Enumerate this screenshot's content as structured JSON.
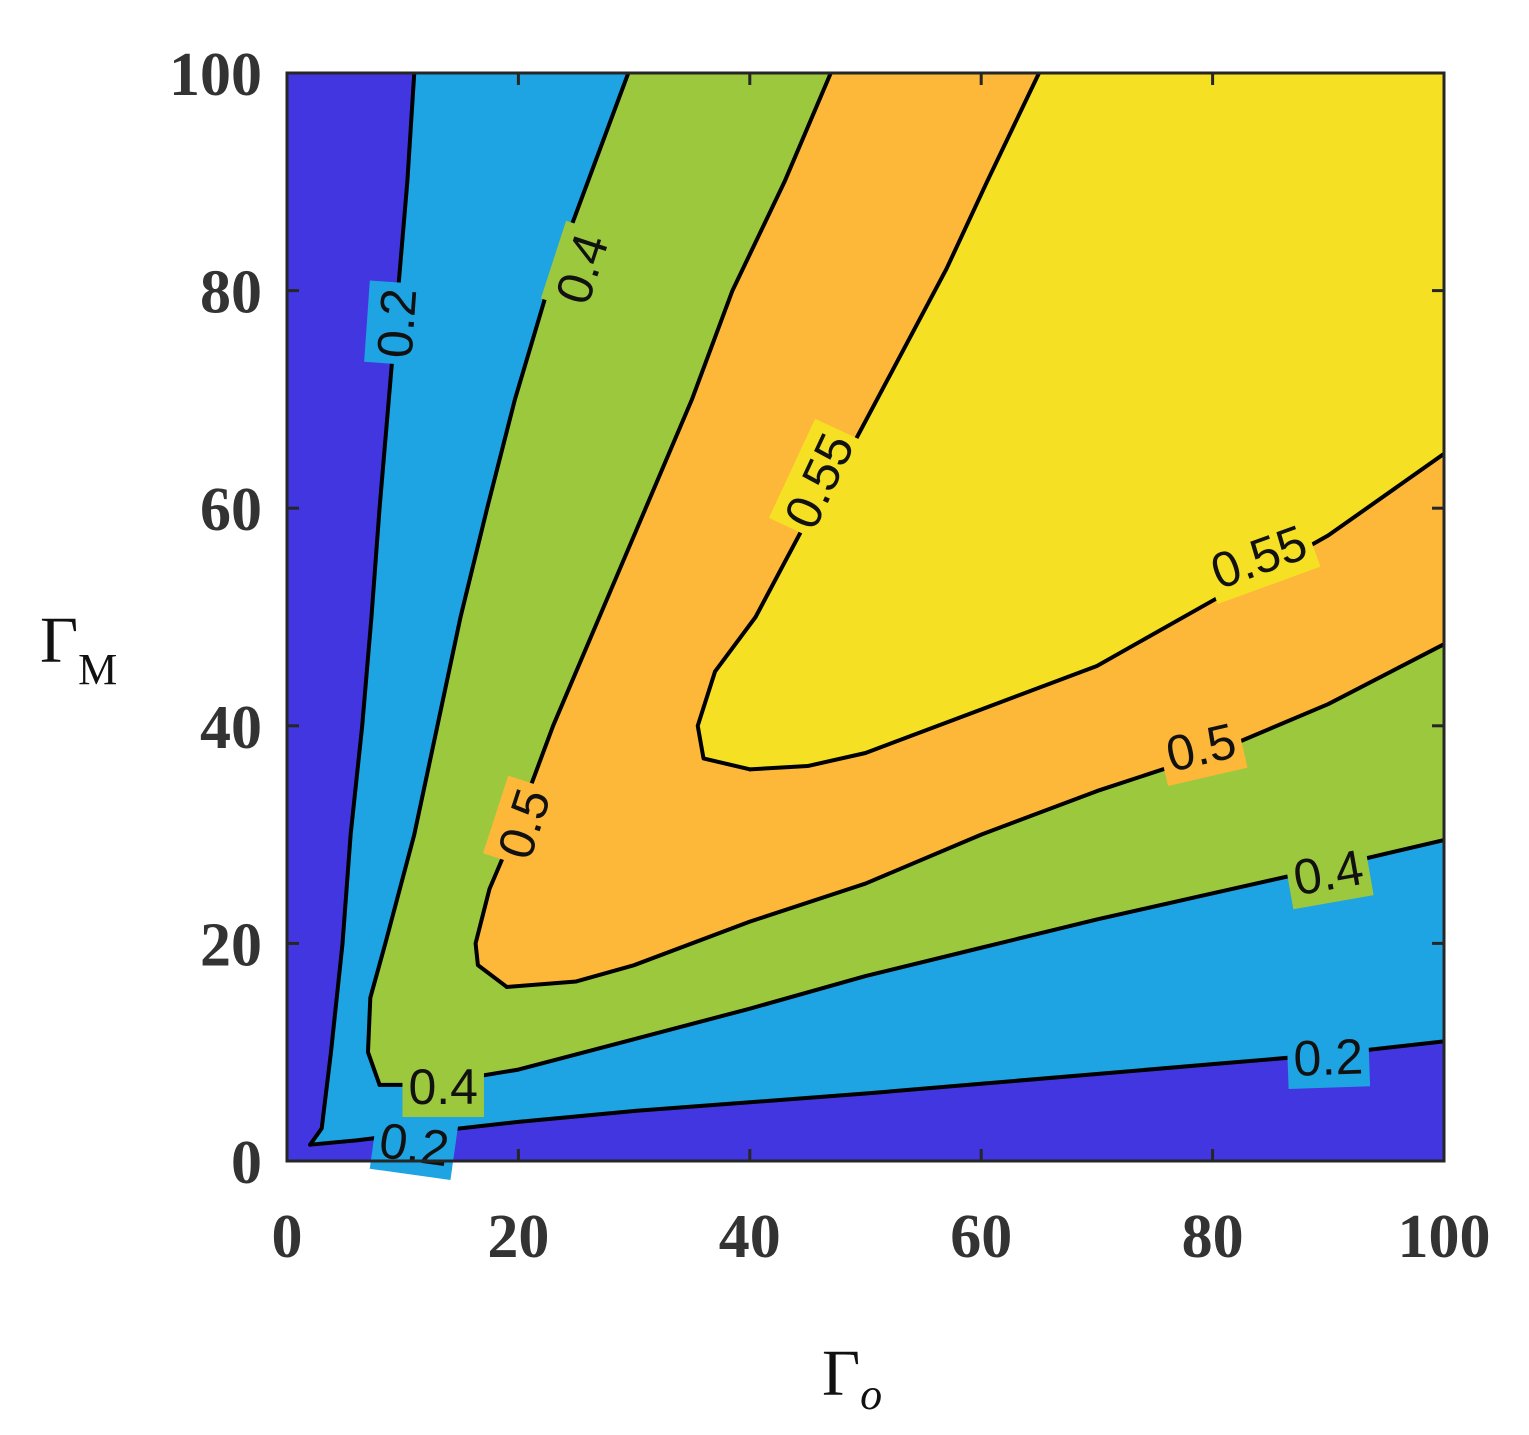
{
  "chart_data": {
    "type": "contour",
    "title": "",
    "xlabel": {
      "main": "Γ",
      "sub": "o"
    },
    "ylabel": {
      "main": "Γ",
      "sub": "M"
    },
    "xlim": [
      0,
      100
    ],
    "ylim": [
      0,
      100
    ],
    "xticks": [
      "0",
      "20",
      "40",
      "60",
      "80",
      "100"
    ],
    "yticks": [
      "0",
      "20",
      "40",
      "60",
      "80",
      "100"
    ],
    "grid": false,
    "levels": [
      0.2,
      0.4,
      0.5,
      0.55
    ],
    "level_labels": [
      "0.2",
      "0.4",
      "0.5",
      "0.55"
    ],
    "colors": {
      "below_0.2": "#4236e0",
      "0.2_to_0.4": "#1ea4e2",
      "0.4_to_0.5": "#9cc83e",
      "0.5_to_0.55": "#fdb83a",
      "above_0.55": "#f5e023",
      "line": "#000000"
    },
    "contours": [
      {
        "level": 0.2,
        "branch": "upper",
        "points": [
          [
            2,
            1.5
          ],
          [
            3,
            3
          ],
          [
            3.8,
            10
          ],
          [
            4.8,
            20
          ],
          [
            5.5,
            30
          ],
          [
            6.5,
            40
          ],
          [
            7.3,
            50
          ],
          [
            8,
            60
          ],
          [
            8.8,
            70
          ],
          [
            9.6,
            80
          ],
          [
            10.4,
            90
          ],
          [
            11,
            100
          ]
        ]
      },
      {
        "level": 0.2,
        "branch": "lower",
        "points": [
          [
            2,
            1.5
          ],
          [
            6,
            1.9
          ],
          [
            10,
            2.4
          ],
          [
            20,
            3.6
          ],
          [
            30,
            4.6
          ],
          [
            40,
            5.4
          ],
          [
            50,
            6.2
          ],
          [
            60,
            7.1
          ],
          [
            70,
            8
          ],
          [
            80,
            8.9
          ],
          [
            90,
            9.8
          ],
          [
            100,
            11
          ]
        ]
      },
      {
        "level": 0.4,
        "branch": "upper",
        "points": [
          [
            8,
            7
          ],
          [
            7,
            10
          ],
          [
            7.2,
            15
          ],
          [
            8.5,
            20
          ],
          [
            11,
            30
          ],
          [
            13,
            40
          ],
          [
            15,
            50
          ],
          [
            17.3,
            60
          ],
          [
            19.7,
            70
          ],
          [
            22.5,
            80
          ],
          [
            26,
            90
          ],
          [
            29.5,
            100
          ]
        ]
      },
      {
        "level": 0.4,
        "branch": "lower",
        "points": [
          [
            8,
            7
          ],
          [
            12,
            7
          ],
          [
            20,
            8.4
          ],
          [
            30,
            11.2
          ],
          [
            40,
            14
          ],
          [
            50,
            17
          ],
          [
            60,
            19.6
          ],
          [
            70,
            22.2
          ],
          [
            80,
            24.6
          ],
          [
            90,
            27
          ],
          [
            100,
            29.5
          ]
        ]
      },
      {
        "level": 0.5,
        "branch": "upper",
        "points": [
          [
            19,
            16
          ],
          [
            16.5,
            18
          ],
          [
            16.3,
            20
          ],
          [
            17.5,
            25
          ],
          [
            19.5,
            30
          ],
          [
            23,
            40
          ],
          [
            27,
            50
          ],
          [
            31,
            60
          ],
          [
            35,
            70
          ],
          [
            38.5,
            80
          ],
          [
            43,
            90
          ],
          [
            47,
            100
          ]
        ]
      },
      {
        "level": 0.5,
        "branch": "lower",
        "points": [
          [
            19,
            16
          ],
          [
            25,
            16.5
          ],
          [
            30,
            18
          ],
          [
            40,
            22
          ],
          [
            50,
            25.5
          ],
          [
            60,
            30
          ],
          [
            70,
            34
          ],
          [
            80,
            37.5
          ],
          [
            90,
            42
          ],
          [
            100,
            47.5
          ]
        ]
      },
      {
        "level": 0.55,
        "branch": "upper",
        "points": [
          [
            40,
            36
          ],
          [
            36,
            37
          ],
          [
            35.5,
            40
          ],
          [
            37,
            45
          ],
          [
            40.5,
            50
          ],
          [
            43,
            55
          ],
          [
            46,
            61
          ],
          [
            48,
            64
          ],
          [
            52,
            72
          ],
          [
            57,
            82
          ],
          [
            60.5,
            90
          ],
          [
            65,
            100
          ]
        ]
      },
      {
        "level": 0.55,
        "branch": "lower",
        "points": [
          [
            40,
            36
          ],
          [
            45,
            36.3
          ],
          [
            50,
            37.5
          ],
          [
            60,
            41.5
          ],
          [
            70,
            45.5
          ],
          [
            80,
            51.5
          ],
          [
            90,
            57.5
          ],
          [
            100,
            65
          ]
        ]
      }
    ],
    "contour_labels": [
      {
        "text": "0.2",
        "x": 9.5,
        "y": 77,
        "angle": -86
      },
      {
        "text": "0.2",
        "x": 11,
        "y": 1.5,
        "angle": 8
      },
      {
        "text": "0.2",
        "x": 90,
        "y": 9.5,
        "angle": -2
      },
      {
        "text": "0.4",
        "x": 25.5,
        "y": 82,
        "angle": -72
      },
      {
        "text": "0.4",
        "x": 13.5,
        "y": 6.8,
        "angle": 0
      },
      {
        "text": "0.4",
        "x": 90,
        "y": 26.5,
        "angle": -10
      },
      {
        "text": "0.5",
        "x": 20.5,
        "y": 31,
        "angle": -72
      },
      {
        "text": "0.5",
        "x": 79,
        "y": 38,
        "angle": -13
      },
      {
        "text": "0.55",
        "x": 46,
        "y": 62.5,
        "angle": -65
      },
      {
        "text": "0.55",
        "x": 84,
        "y": 55.5,
        "angle": -20
      }
    ]
  }
}
